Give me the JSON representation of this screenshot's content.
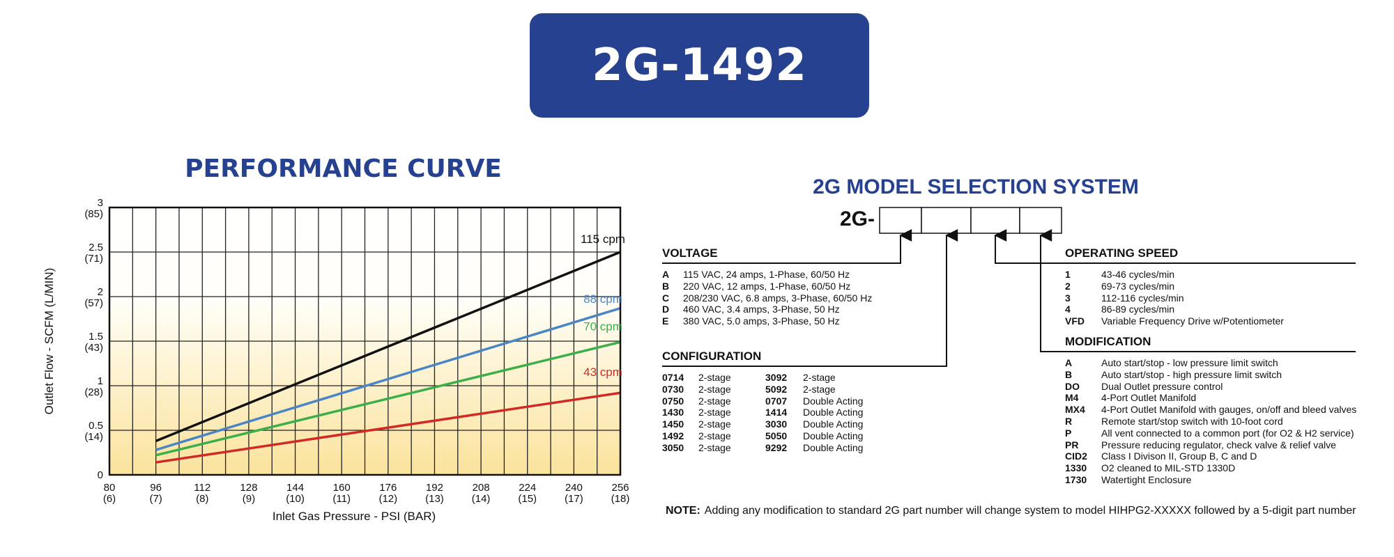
{
  "header": {
    "model": "2G-1492"
  },
  "performance": {
    "title": "PERFORMANCE CURVE"
  },
  "chart_data": {
    "type": "line",
    "title": "PERFORMANCE CURVE",
    "xlabel": "Inlet Gas Pressure - PSI (BAR)",
    "ylabel": "Outlet Flow - SCFM (L/MIN)",
    "xlim": [
      80,
      256
    ],
    "ylim": [
      0,
      3
    ],
    "grid": true,
    "x_ticks": [
      {
        "v": 80,
        "l1": "80",
        "l2": "(6)"
      },
      {
        "v": 96,
        "l1": "96",
        "l2": "(7)"
      },
      {
        "v": 112,
        "l1": "112",
        "l2": "(8)"
      },
      {
        "v": 128,
        "l1": "128",
        "l2": "(9)"
      },
      {
        "v": 144,
        "l1": "144",
        "l2": "(10)"
      },
      {
        "v": 160,
        "l1": "160",
        "l2": "(11)"
      },
      {
        "v": 176,
        "l1": "176",
        "l2": "(12)"
      },
      {
        "v": 192,
        "l1": "192",
        "l2": "(13)"
      },
      {
        "v": 208,
        "l1": "208",
        "l2": "(14)"
      },
      {
        "v": 224,
        "l1": "224",
        "l2": "(15)"
      },
      {
        "v": 240,
        "l1": "240",
        "l2": "(17)"
      },
      {
        "v": 256,
        "l1": "256",
        "l2": "(18)"
      }
    ],
    "y_ticks": [
      {
        "v": 0,
        "l1": "0",
        "l2": ""
      },
      {
        "v": 0.5,
        "l1": "0.5",
        "l2": "(14)"
      },
      {
        "v": 1,
        "l1": "1",
        "l2": "(28)"
      },
      {
        "v": 1.5,
        "l1": "1.5",
        "l2": "(43)"
      },
      {
        "v": 2,
        "l1": "2",
        "l2": "(57)"
      },
      {
        "v": 2.5,
        "l1": "2.5",
        "l2": "(71)"
      },
      {
        "v": 3,
        "l1": "3",
        "l2": "(85)"
      }
    ],
    "series": [
      {
        "name": "115 cpm",
        "color": "#111111",
        "x": [
          96,
          256
        ],
        "y": [
          0.38,
          2.5
        ],
        "label_x": 250,
        "label_y": 2.6
      },
      {
        "name": "88 cpm",
        "color": "#4a86c5",
        "x": [
          96,
          256
        ],
        "y": [
          0.28,
          1.87
        ],
        "label_x": 250,
        "label_y": 1.93
      },
      {
        "name": "70 cpm",
        "color": "#3cae4a",
        "x": [
          96,
          256
        ],
        "y": [
          0.22,
          1.49
        ],
        "label_x": 250,
        "label_y": 1.62
      },
      {
        "name": "43 cpm",
        "color": "#d02a27",
        "x": [
          96,
          256
        ],
        "y": [
          0.14,
          0.92
        ],
        "label_x": 250,
        "label_y": 1.11
      }
    ]
  },
  "selection": {
    "title": "2G MODEL SELECTION SYSTEM",
    "prefix": "2G-",
    "voltage": {
      "title": "VOLTAGE",
      "items": [
        {
          "code": "A",
          "desc": "115 VAC, 24 amps, 1-Phase, 60/50 Hz"
        },
        {
          "code": "B",
          "desc": "220 VAC,  12 amps, 1-Phase, 60/50 Hz"
        },
        {
          "code": "C",
          "desc": "208/230 VAC,  6.8 amps, 3-Phase, 60/50 Hz"
        },
        {
          "code": "D",
          "desc": "460 VAC,  3.4 amps, 3-Phase, 50 Hz"
        },
        {
          "code": "E",
          "desc": "380 VAC, 5.0 amps, 3-Phase, 50 Hz"
        }
      ]
    },
    "configuration": {
      "title": "CONFIGURATION",
      "items": [
        {
          "c1": "0714",
          "d1": "2-stage",
          "c2": "3092",
          "d2": "2-stage"
        },
        {
          "c1": "0730",
          "d1": "2-stage",
          "c2": "5092",
          "d2": "2-stage"
        },
        {
          "c1": "0750",
          "d1": "2-stage",
          "c2": "0707",
          "d2": "Double Acting"
        },
        {
          "c1": "1430",
          "d1": "2-stage",
          "c2": "1414",
          "d2": "Double Acting"
        },
        {
          "c1": "1450",
          "d1": "2-stage",
          "c2": "3030",
          "d2": "Double Acting"
        },
        {
          "c1": "1492",
          "d1": "2-stage",
          "c2": "5050",
          "d2": "Double Acting"
        },
        {
          "c1": "3050",
          "d1": "2-stage",
          "c2": "9292",
          "d2": "Double Acting"
        }
      ]
    },
    "speed": {
      "title": "OPERATING SPEED",
      "items": [
        {
          "code": "1",
          "desc": "43-46 cycles/min"
        },
        {
          "code": "2",
          "desc": "69-73 cycles/min"
        },
        {
          "code": "3",
          "desc": "112-116 cycles/min"
        },
        {
          "code": "4",
          "desc": "86-89 cycles/min"
        },
        {
          "code": "VFD",
          "desc": "Variable Frequency Drive w/Potentiometer"
        }
      ]
    },
    "modification": {
      "title": "MODIFICATION",
      "items": [
        {
          "code": "A",
          "desc": "Auto start/stop - low pressure limit switch"
        },
        {
          "code": "B",
          "desc": "Auto start/stop - high pressure limit switch"
        },
        {
          "code": "DO",
          "desc": "Dual Outlet pressure control"
        },
        {
          "code": "M4",
          "desc": "4-Port Outlet Manifold"
        },
        {
          "code": "MX4",
          "desc": "4-Port Outlet Manifold with gauges, on/off and bleed valves"
        },
        {
          "code": "R",
          "desc": "Remote start/stop switch with 10-foot cord"
        },
        {
          "code": "P",
          "desc": "All vent connected to a common port (for O2 & H2 service)"
        },
        {
          "code": "PR",
          "desc": "Pressure reducing regulator, check valve & relief valve"
        },
        {
          "code": "CID2",
          "desc": "Class I Divison II, Group B, C and D"
        },
        {
          "code": "1330",
          "desc": "O2 cleaned to MIL-STD 1330D"
        },
        {
          "code": "1730",
          "desc": "Watertight Enclosure"
        }
      ]
    },
    "note": {
      "label": "NOTE:",
      "text": "Adding any modification to standard 2G part number will change system to model HIHPG2-XXXXX followed by a 5-digit part number"
    }
  }
}
